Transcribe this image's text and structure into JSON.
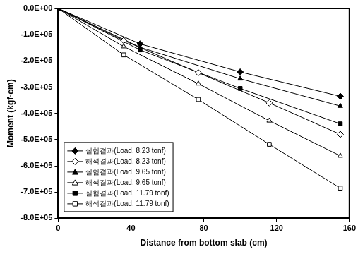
{
  "chart_data": {
    "type": "line",
    "x_label": "Distance from bottom slab (cm)",
    "y_label": "Moment (kgf-cm)",
    "xlim": [
      0,
      160
    ],
    "xticks": [
      0,
      40,
      80,
      120,
      160
    ],
    "ylim": [
      -800000,
      0
    ],
    "yticks": [
      {
        "value": 0,
        "label": "0.0E+00"
      },
      {
        "value": -100000,
        "label": "-1.0E+05"
      },
      {
        "value": -200000,
        "label": "-2.0E+05"
      },
      {
        "value": -300000,
        "label": "-3.0E+05"
      },
      {
        "value": -400000,
        "label": "-4.0E+05"
      },
      {
        "value": -500000,
        "label": "-5.0E+05"
      },
      {
        "value": -600000,
        "label": "-6.0E+05"
      },
      {
        "value": -700000,
        "label": "-7.0E+05"
      },
      {
        "value": -800000,
        "label": "-8.0E+05"
      }
    ],
    "grid": false,
    "legend": "lower left",
    "series": [
      {
        "name": "실험결과(Load, 8.23 tonf)",
        "color": "#000000",
        "marker": "diamond",
        "x": [
          0,
          45,
          100,
          155
        ],
        "values": [
          0,
          -135000,
          -242000,
          -335000
        ]
      },
      {
        "name": "해석결과(Load, 8.23 tonf)",
        "color": "#000000",
        "marker": "diamond_open",
        "x": [
          0,
          36,
          77,
          116,
          155
        ],
        "values": [
          0,
          -122000,
          -245000,
          -360000,
          -480000
        ]
      },
      {
        "name": "실험결과(Load, 9.65 tonf)",
        "color": "#000000",
        "marker": "triangle",
        "x": [
          0,
          45,
          100,
          155
        ],
        "values": [
          0,
          -148000,
          -268000,
          -372000
        ]
      },
      {
        "name": "해석결과(Load, 9.65 tonf)",
        "color": "#000000",
        "marker": "triangle_open",
        "x": [
          0,
          36,
          77,
          116,
          155
        ],
        "values": [
          0,
          -145000,
          -287000,
          -428000,
          -562000
        ]
      },
      {
        "name": "실험결과(Load, 11.79 tonf)",
        "color": "#000000",
        "marker": "square",
        "x": [
          0,
          45,
          100,
          155
        ],
        "values": [
          0,
          -158000,
          -305000,
          -440000
        ]
      },
      {
        "name": "해석결과(Load, 11.79 tonf)",
        "color": "#000000",
        "marker": "square_open",
        "x": [
          0,
          36,
          77,
          116,
          155
        ],
        "values": [
          0,
          -177000,
          -347000,
          -518000,
          -685000
        ]
      }
    ]
  }
}
